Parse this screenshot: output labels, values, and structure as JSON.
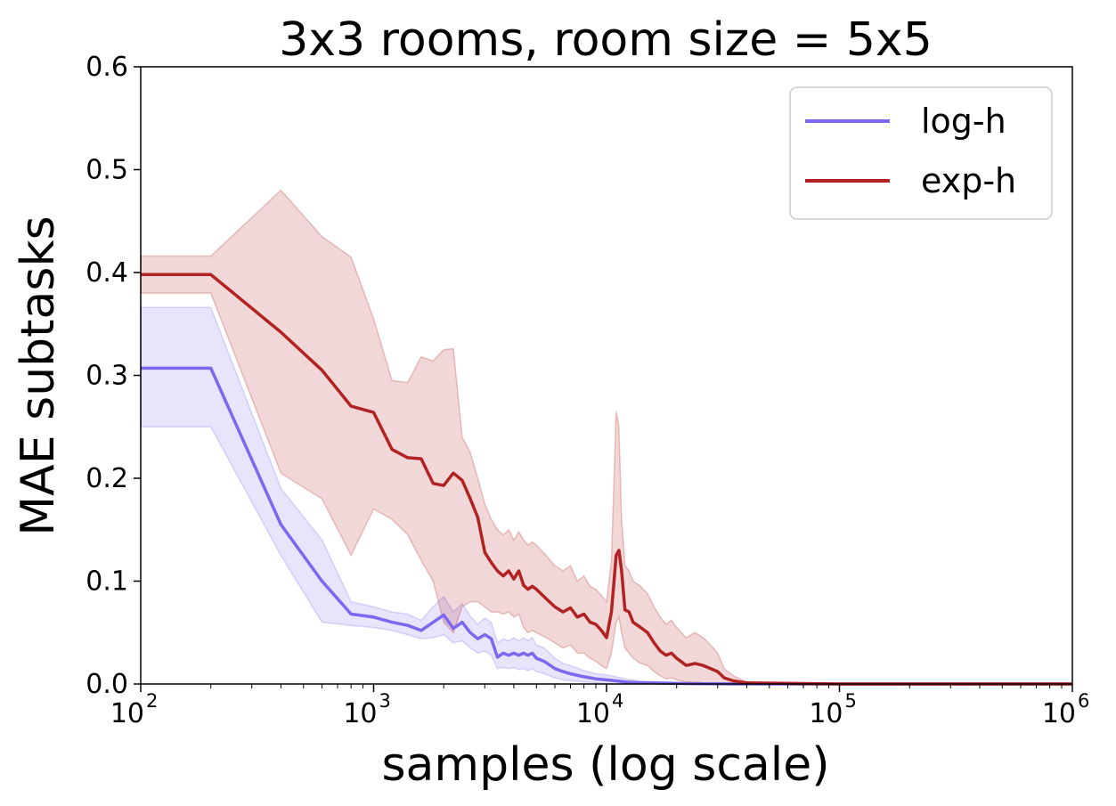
{
  "chart_data": {
    "type": "line",
    "title": "3x3 rooms, room size = 5x5",
    "xlabel": "samples (log scale)",
    "ylabel": "MAE subtasks",
    "xscale": "log",
    "xlim": [
      100,
      1000000
    ],
    "ylim": [
      0.0,
      0.6
    ],
    "x_ticks": [
      {
        "base": "10",
        "exp": "2"
      },
      {
        "base": "10",
        "exp": "3"
      },
      {
        "base": "10",
        "exp": "4"
      },
      {
        "base": "10",
        "exp": "5"
      },
      {
        "base": "10",
        "exp": "6"
      }
    ],
    "y_ticks": [
      "0.0",
      "0.1",
      "0.2",
      "0.3",
      "0.4",
      "0.5",
      "0.6"
    ],
    "grid": false,
    "legend": {
      "placement": "top-right",
      "entries": [
        "log-h",
        "exp-h"
      ]
    },
    "series": [
      {
        "name": "log-h",
        "color": "#7B68EE",
        "x": [
          100,
          200,
          400,
          600,
          800,
          1000,
          1200,
          1400,
          1600,
          1800,
          2000,
          2200,
          2400,
          2600,
          2800,
          3000,
          3200,
          3400,
          3600,
          3800,
          4000,
          4200,
          4400,
          4600,
          4800,
          5000,
          5400,
          6000,
          6500,
          7000,
          8000,
          9000,
          10000,
          11000,
          12000,
          14000,
          16000,
          20000,
          25000,
          30000,
          35000,
          50000,
          100000,
          1000000
        ],
        "y": [
          0.307,
          0.307,
          0.155,
          0.1,
          0.068,
          0.065,
          0.06,
          0.057,
          0.052,
          0.06,
          0.067,
          0.054,
          0.06,
          0.05,
          0.044,
          0.048,
          0.044,
          0.026,
          0.03,
          0.028,
          0.03,
          0.028,
          0.03,
          0.028,
          0.03,
          0.025,
          0.022,
          0.015,
          0.012,
          0.01,
          0.007,
          0.005,
          0.004,
          0.003,
          0.002,
          0.001,
          0.001,
          0.0005,
          0.0003,
          0.0002,
          0.0,
          0.0,
          0.0,
          0.0
        ],
        "lower": [
          0.25,
          0.25,
          0.125,
          0.06,
          0.057,
          0.055,
          0.052,
          0.048,
          0.044,
          0.045,
          0.048,
          0.04,
          0.042,
          0.035,
          0.03,
          0.032,
          0.028,
          0.015,
          0.016,
          0.015,
          0.016,
          0.014,
          0.015,
          0.013,
          0.015,
          0.012,
          0.01,
          0.006,
          0.004,
          0.003,
          0.002,
          0.001,
          0.0,
          0.0,
          0.0,
          0.0,
          0.0,
          0.0,
          0.0,
          0.0,
          0.0,
          0.0,
          0.0,
          0.0
        ],
        "upper": [
          0.366,
          0.366,
          0.19,
          0.14,
          0.08,
          0.075,
          0.07,
          0.068,
          0.062,
          0.075,
          0.085,
          0.07,
          0.078,
          0.066,
          0.058,
          0.064,
          0.06,
          0.04,
          0.044,
          0.042,
          0.045,
          0.042,
          0.045,
          0.042,
          0.045,
          0.038,
          0.035,
          0.025,
          0.02,
          0.018,
          0.013,
          0.01,
          0.009,
          0.007,
          0.005,
          0.003,
          0.002,
          0.0015,
          0.001,
          0.0005,
          0.0,
          0.0,
          0.0,
          0.0
        ]
      },
      {
        "name": "exp-h",
        "color": "#B22222",
        "x": [
          100,
          200,
          400,
          600,
          800,
          1000,
          1200,
          1400,
          1600,
          1800,
          2000,
          2200,
          2400,
          2600,
          2800,
          3000,
          3200,
          3400,
          3600,
          3800,
          4000,
          4200,
          4400,
          4600,
          4800,
          5000,
          5500,
          6000,
          6500,
          7000,
          7500,
          8000,
          8500,
          9000,
          9500,
          10000,
          10500,
          11000,
          11300,
          11600,
          12000,
          12500,
          13000,
          14000,
          15000,
          16000,
          17000,
          18000,
          19000,
          20000,
          22000,
          24000,
          26000,
          28000,
          30000,
          32000,
          35000,
          40000,
          100000,
          1000000
        ],
        "y": [
          0.398,
          0.398,
          0.342,
          0.305,
          0.27,
          0.264,
          0.228,
          0.22,
          0.219,
          0.195,
          0.193,
          0.205,
          0.198,
          0.18,
          0.162,
          0.128,
          0.118,
          0.11,
          0.105,
          0.11,
          0.102,
          0.11,
          0.096,
          0.092,
          0.095,
          0.092,
          0.083,
          0.075,
          0.07,
          0.074,
          0.065,
          0.068,
          0.06,
          0.058,
          0.052,
          0.045,
          0.07,
          0.125,
          0.13,
          0.11,
          0.072,
          0.07,
          0.06,
          0.055,
          0.05,
          0.04,
          0.032,
          0.028,
          0.03,
          0.025,
          0.018,
          0.02,
          0.018,
          0.015,
          0.012,
          0.006,
          0.003,
          0.001,
          0.0,
          0.0
        ],
        "lower": [
          0.38,
          0.38,
          0.205,
          0.18,
          0.125,
          0.17,
          0.16,
          0.145,
          0.12,
          0.1,
          0.06,
          0.05,
          0.075,
          0.08,
          0.08,
          0.075,
          0.07,
          0.07,
          0.068,
          0.07,
          0.065,
          0.068,
          0.055,
          0.05,
          0.052,
          0.05,
          0.045,
          0.04,
          0.035,
          0.038,
          0.03,
          0.03,
          0.025,
          0.022,
          0.018,
          0.015,
          0.03,
          0.06,
          0.065,
          0.05,
          0.035,
          0.03,
          0.025,
          0.02,
          0.018,
          0.012,
          0.008,
          0.005,
          0.006,
          0.004,
          0.002,
          0.002,
          0.001,
          0.001,
          0.0,
          0.0,
          0.0,
          0.0,
          0.0,
          0.0
        ],
        "upper": [
          0.416,
          0.416,
          0.48,
          0.435,
          0.415,
          0.355,
          0.295,
          0.293,
          0.318,
          0.314,
          0.325,
          0.326,
          0.24,
          0.225,
          0.2,
          0.175,
          0.16,
          0.15,
          0.145,
          0.15,
          0.14,
          0.148,
          0.14,
          0.135,
          0.138,
          0.135,
          0.125,
          0.115,
          0.11,
          0.115,
          0.1,
          0.105,
          0.095,
          0.092,
          0.086,
          0.08,
          0.12,
          0.265,
          0.25,
          0.16,
          0.115,
          0.11,
          0.1,
          0.095,
          0.088,
          0.075,
          0.065,
          0.058,
          0.062,
          0.055,
          0.045,
          0.05,
          0.045,
          0.038,
          0.03,
          0.015,
          0.008,
          0.002,
          0.0,
          0.0
        ]
      }
    ]
  }
}
